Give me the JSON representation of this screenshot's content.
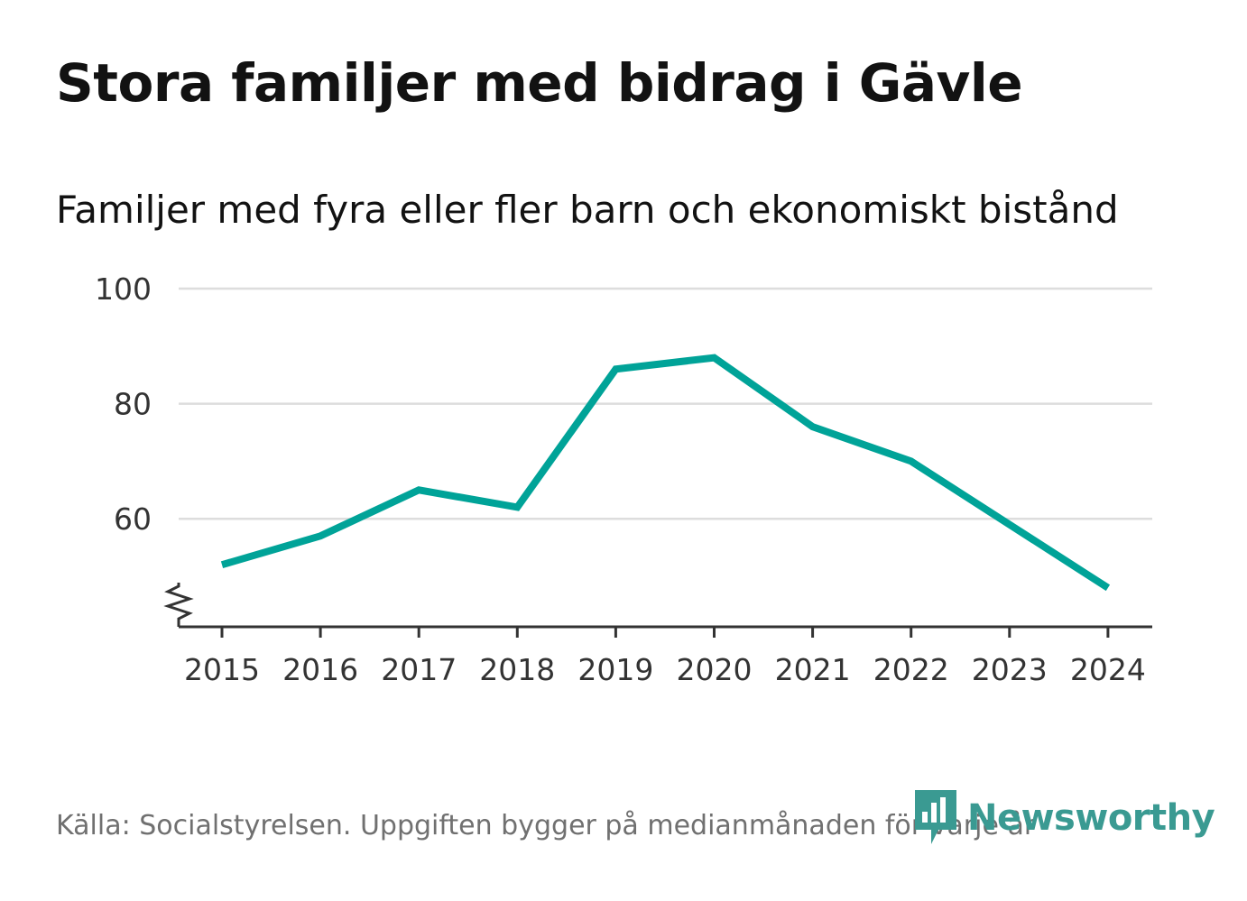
{
  "title": "Stora familjer med bidrag i Gävle",
  "subtitle": "Familjer med fyra eller fler barn och ekonomiskt bistånd",
  "source": "Källa: Socialstyrelsen. Uppgiften bygger på medianmånaden för varje år",
  "brand": {
    "name": "Newsworthy",
    "icon": "newsworthy-logo-icon",
    "color": "#3a9a92"
  },
  "colors": {
    "line": "#00a398",
    "grid": "#dddddd",
    "axis": "#333333"
  },
  "chart_data": {
    "type": "line",
    "x": [
      "2015",
      "2016",
      "2017",
      "2018",
      "2019",
      "2020",
      "2021",
      "2022",
      "2023",
      "2024"
    ],
    "series": [
      {
        "values": [
          52,
          57,
          65,
          62,
          86,
          88,
          76,
          70,
          59,
          48
        ]
      }
    ],
    "yticks": [
      "60",
      "80",
      "100"
    ],
    "ylim": [
      41,
      100
    ],
    "broken_axis": true,
    "grid": true,
    "legend": "none"
  }
}
